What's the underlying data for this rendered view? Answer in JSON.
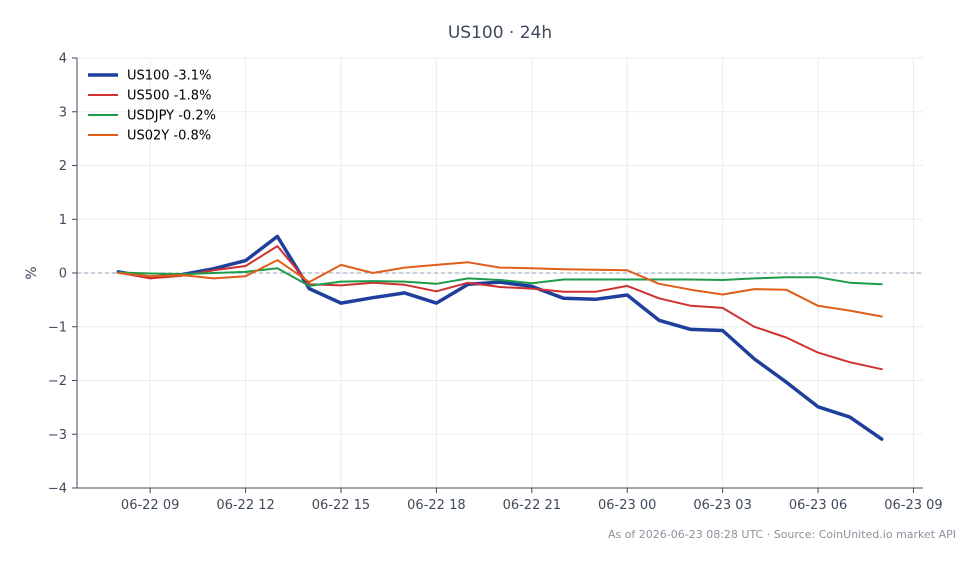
{
  "chart_data": {
    "type": "line",
    "title": "US100 · 24h",
    "ylabel": "%",
    "xlabel": "",
    "ylim": [
      -4,
      4
    ],
    "yticks": [
      4,
      3,
      2,
      1,
      0,
      -1,
      -2,
      -3,
      -4
    ],
    "ytick_labels": [
      "4",
      "3",
      "2",
      "1",
      "0",
      "−1",
      "−2",
      "−3",
      "−4"
    ],
    "xticks": [
      "06-22 09",
      "06-22 12",
      "06-22 15",
      "06-22 18",
      "06-22 21",
      "06-23 00",
      "06-23 03",
      "06-23 06",
      "06-23 09"
    ],
    "grid": true,
    "baseline": 0,
    "legend_position": "top-left",
    "x_hours": [
      8,
      9,
      10,
      11,
      12,
      13,
      14,
      15,
      16,
      17,
      18,
      19,
      20,
      21,
      22,
      23,
      24,
      25,
      26,
      27,
      28,
      29,
      30,
      31,
      32
    ],
    "series": [
      {
        "name": "US100 -3.1%",
        "color": "#1f3f9c",
        "width": 3.5,
        "values": [
          0.02,
          -0.08,
          -0.03,
          0.08,
          0.23,
          0.68,
          -0.29,
          -0.56,
          -0.46,
          -0.37,
          -0.56,
          -0.21,
          -0.17,
          -0.25,
          -0.47,
          -0.49,
          -0.41,
          -0.88,
          -1.05,
          -1.07,
          -1.6,
          -2.03,
          -2.49,
          -2.68,
          -3.09
        ]
      },
      {
        "name": "US500 -1.8%",
        "color": "#d03030",
        "width": 2,
        "values": [
          0.01,
          -0.1,
          -0.05,
          0.05,
          0.13,
          0.5,
          -0.21,
          -0.23,
          -0.18,
          -0.22,
          -0.34,
          -0.18,
          -0.26,
          -0.29,
          -0.35,
          -0.35,
          -0.24,
          -0.47,
          -0.61,
          -0.65,
          -1.0,
          -1.2,
          -1.48,
          -1.66,
          -1.79
        ]
      },
      {
        "name": "USDJPY -0.2%",
        "color": "#1e9b4a",
        "width": 2,
        "values": [
          0.01,
          -0.01,
          -0.02,
          0.0,
          0.02,
          0.09,
          -0.24,
          -0.16,
          -0.15,
          -0.16,
          -0.2,
          -0.1,
          -0.13,
          -0.19,
          -0.12,
          -0.12,
          -0.12,
          -0.12,
          -0.12,
          -0.13,
          -0.1,
          -0.08,
          -0.08,
          -0.18,
          -0.21
        ]
      },
      {
        "name": "US02Y -0.8%",
        "color": "#e05e1a",
        "width": 2,
        "values": [
          0.0,
          -0.06,
          -0.04,
          -0.1,
          -0.06,
          0.24,
          -0.17,
          0.15,
          0.0,
          0.1,
          0.15,
          0.2,
          0.1,
          0.09,
          0.07,
          0.06,
          0.05,
          -0.2,
          -0.31,
          -0.4,
          -0.3,
          -0.31,
          -0.61,
          -0.7,
          -0.81
        ]
      }
    ]
  },
  "footer": "As of 2026-06-23 08:28 UTC · Source: CoinUnited.io market API"
}
